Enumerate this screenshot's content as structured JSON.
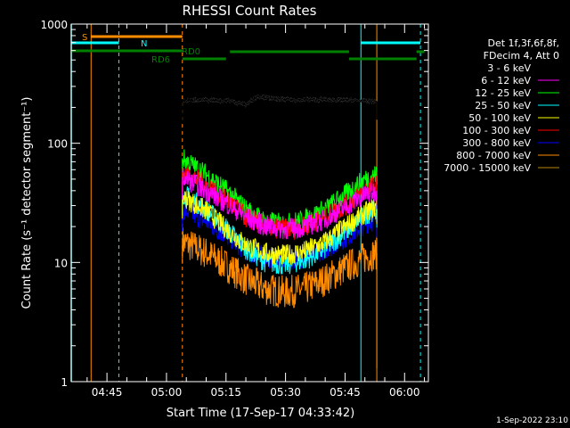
{
  "chart_data": {
    "type": "line",
    "title": "RHESSI Count Rates",
    "xlabel": "Start Time (17-Sep-17 04:33:42)",
    "ylabel": "Count Rate (s⁻¹ detector segment⁻¹)",
    "yscale": "log",
    "ylim": [
      1,
      1000
    ],
    "y_tick_labels": [
      "1",
      "10",
      "100",
      "1000"
    ],
    "xlim": [
      "04:36",
      "06:06"
    ],
    "x_tick_labels": [
      "04:45",
      "05:00",
      "05:15",
      "05:30",
      "05:45",
      "06:00"
    ],
    "legend_placement": "right",
    "legend_header": [
      "Det 1f,3f,6f,8f,",
      "FDecim 4, Att 0"
    ],
    "grid": false,
    "series": [
      {
        "name": "3 - 6 keV",
        "color": "#000000",
        "x": [
          "05:04",
          "05:10",
          "05:16",
          "05:20",
          "05:23",
          "05:26",
          "05:30",
          "05:40",
          "05:50",
          "05:53"
        ],
        "y": [
          230,
          230,
          228,
          210,
          250,
          238,
          232,
          232,
          228,
          225
        ]
      },
      {
        "name": "6 - 12 keV",
        "color": "#ff00ff",
        "x": [
          "05:04",
          "05:10",
          "05:16",
          "05:20",
          "05:25",
          "05:30",
          "05:35",
          "05:40",
          "05:45",
          "05:50",
          "05:53"
        ],
        "y": [
          52,
          40,
          30,
          24,
          20,
          19,
          20,
          23,
          29,
          37,
          40
        ]
      },
      {
        "name": "12 - 25 keV",
        "color": "#00ff00",
        "x": [
          "05:04",
          "05:10",
          "05:16",
          "05:20",
          "05:25",
          "05:30",
          "05:35",
          "05:40",
          "05:45",
          "05:50",
          "05:53"
        ],
        "y": [
          75,
          55,
          38,
          28,
          22,
          21,
          23,
          28,
          37,
          50,
          55
        ]
      },
      {
        "name": "25 - 50 keV",
        "color": "#00ffff",
        "x": [
          "05:04",
          "05:10",
          "05:16",
          "05:20",
          "05:25",
          "05:30",
          "05:35",
          "05:40",
          "05:45",
          "05:50",
          "05:53"
        ],
        "y": [
          38,
          28,
          18,
          13,
          10,
          9.5,
          10.5,
          13,
          18,
          25,
          28
        ]
      },
      {
        "name": "50 - 100 keV",
        "color": "#ffff00",
        "x": [
          "05:04",
          "05:10",
          "05:16",
          "05:20",
          "05:25",
          "05:30",
          "05:35",
          "05:40",
          "05:45",
          "05:50",
          "05:53"
        ],
        "y": [
          36,
          27,
          18,
          14,
          12,
          11.5,
          12.5,
          15,
          20,
          26,
          30
        ]
      },
      {
        "name": "100 - 300 keV",
        "color": "#ff0000",
        "x": [
          "05:04",
          "05:10",
          "05:16",
          "05:20",
          "05:25",
          "05:30",
          "05:35",
          "05:40",
          "05:45",
          "05:50",
          "05:53"
        ],
        "y": [
          58,
          45,
          32,
          24,
          20,
          19,
          20,
          24,
          30,
          40,
          45
        ]
      },
      {
        "name": "300 - 800 keV",
        "color": "#0000ff",
        "x": [
          "05:04",
          "05:10",
          "05:16",
          "05:20",
          "05:25",
          "05:30",
          "05:35",
          "05:40",
          "05:45",
          "05:50",
          "05:53"
        ],
        "y": [
          28,
          22,
          16,
          12.5,
          11,
          10.5,
          11,
          13,
          16,
          21,
          23
        ]
      },
      {
        "name": "800 - 7000 keV",
        "color": "#ff8c00",
        "x": [
          "05:04",
          "05:10",
          "05:16",
          "05:20",
          "05:25",
          "05:30",
          "05:35",
          "05:40",
          "05:45",
          "05:50",
          "05:53"
        ],
        "y": [
          15,
          12,
          9,
          7.2,
          6,
          5.6,
          6,
          7.2,
          9,
          11,
          12
        ]
      },
      {
        "name": "7000 - 15000 keV",
        "color": "#b8860b",
        "x": [],
        "y": []
      }
    ],
    "annotations": [
      {
        "text": "S",
        "color": "#ff8c00"
      },
      {
        "text": "N",
        "color": "#00ffff"
      },
      {
        "text": "RD0",
        "color": "#008000"
      },
      {
        "text": "RD6",
        "color": "#008000"
      }
    ]
  },
  "footer": {
    "timestamp": "1-Sep-2022 23:10"
  }
}
